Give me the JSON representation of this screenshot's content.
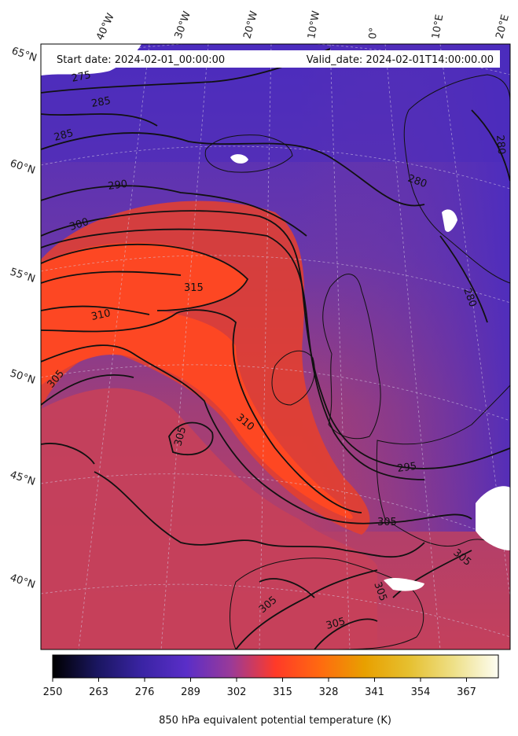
{
  "map": {
    "start_label": "Start date: 2024-02-01_00:00:00",
    "valid_label": "Valid_date: 2024-02-01T14:00:00.00",
    "lon_labels": [
      "40°W",
      "30°W",
      "20°W",
      "10°W",
      "0°",
      "10°E",
      "20°E"
    ],
    "lat_labels": [
      "65°N",
      "60°N",
      "55°N",
      "50°N",
      "45°N",
      "40°N"
    ],
    "contour_labels": [
      "275",
      "285",
      "285",
      "290",
      "300",
      "315",
      "310",
      "305",
      "305",
      "310",
      "280",
      "280",
      "295",
      "305",
      "305",
      "305",
      "305",
      "305",
      "280"
    ],
    "field_colors": {
      "cold": "#4a2ab8",
      "mid": "#7a3a9a",
      "warm": "#c2405c",
      "hot": "#ff4a20",
      "land_mask": "#ffffff"
    }
  },
  "colorbar": {
    "ticks": [
      "250",
      "263",
      "276",
      "289",
      "302",
      "315",
      "328",
      "341",
      "354",
      "367"
    ],
    "title": "850 hPa equivalent potential temperature (K)",
    "range": [
      250,
      376
    ]
  }
}
